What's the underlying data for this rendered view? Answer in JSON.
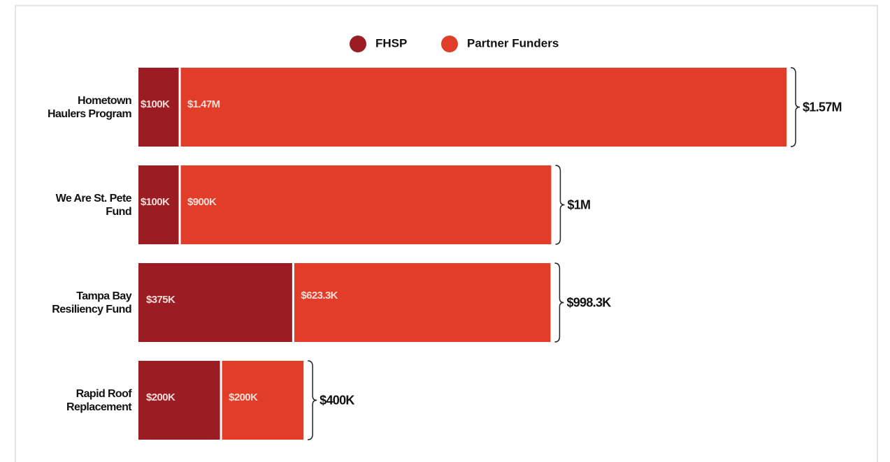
{
  "chart_data": {
    "type": "stacked-bar-horizontal",
    "categories": [
      "Hometown Haulers Program",
      "We Are St. Pete Fund",
      "Tampa Bay Resiliency Fund",
      "Rapid Roof Replacement"
    ],
    "series": [
      {
        "name": "FHSP",
        "color": "#9b1c22",
        "values": [
          100000,
          100000,
          375000,
          200000
        ],
        "value_labels": [
          "$100K",
          "$100K",
          "$375K",
          "$200K"
        ]
      },
      {
        "name": "Partner Funders",
        "color": "#e23d28",
        "values": [
          1470000,
          900000,
          623300,
          200000
        ],
        "value_labels": [
          "$1.47M",
          "$900K",
          "$623.3K",
          "$200K"
        ]
      }
    ],
    "totals": [
      1570000,
      1000000,
      998300,
      400000
    ],
    "total_labels": [
      "$1.57M",
      "$1M",
      "$998.3K",
      "$400K"
    ],
    "xlim": [
      0,
      1570000
    ],
    "legend": "top"
  }
}
